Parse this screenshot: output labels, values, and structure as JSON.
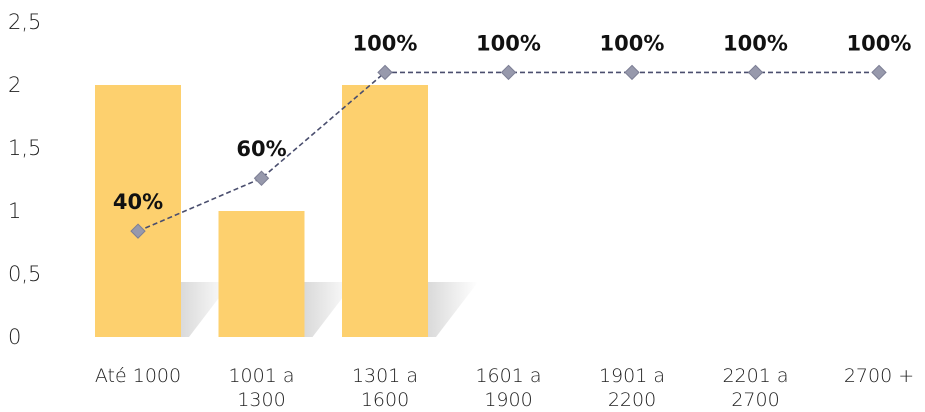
{
  "chart_data": {
    "type": "bar",
    "categories": [
      [
        "Até 1000"
      ],
      [
        "1001 a",
        "1300"
      ],
      [
        "1301 a",
        "1600"
      ],
      [
        "1601 a",
        "1900"
      ],
      [
        "1901 a",
        "2200"
      ],
      [
        "2201 a",
        "2700"
      ],
      [
        "2700 +"
      ]
    ],
    "series": [
      {
        "type": "bar",
        "values": [
          2,
          1,
          2,
          0,
          0,
          0,
          0
        ]
      },
      {
        "type": "line",
        "values": [
          0.4,
          0.6,
          1.0,
          1.0,
          1.0,
          1.0,
          1.0
        ],
        "labels": [
          "40%",
          "60%",
          "100%",
          "100%",
          "100%",
          "100%",
          "100%"
        ]
      }
    ],
    "yticks": [
      "0",
      "0,5",
      "1",
      "1,5",
      "2",
      "2,5"
    ],
    "ylim": [
      0,
      2.5
    ],
    "grid": false,
    "colors": {
      "bar": "#FDD06E",
      "line": "#4A4E6E",
      "marker": "#9799AC"
    }
  }
}
